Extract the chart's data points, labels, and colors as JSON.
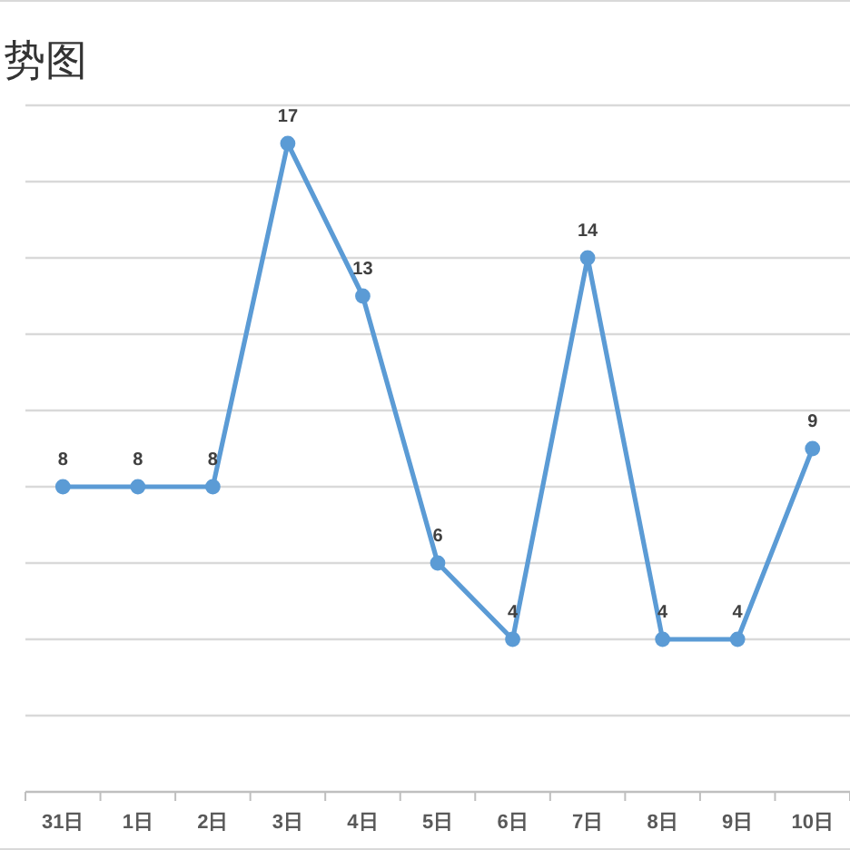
{
  "chart_data": {
    "type": "line",
    "title": "势图",
    "categories": [
      "31日",
      "1日",
      "2日",
      "3日",
      "4日",
      "5日",
      "6日",
      "7日",
      "8日",
      "9日",
      "10日"
    ],
    "values": [
      8,
      8,
      8,
      17,
      13,
      6,
      4,
      14,
      4,
      4,
      9
    ],
    "color": "#5b9bd5",
    "marker": "circle",
    "line_style": "solid",
    "data_labels": true,
    "grid": "y",
    "ylim": [
      0,
      18
    ],
    "yticks": [
      {
        "value": 0,
        "label": null
      },
      {
        "value": 2,
        "label": null
      },
      {
        "value": 4,
        "label": null
      },
      {
        "value": 6,
        "label": null
      },
      {
        "value": 8,
        "label": null
      },
      {
        "value": 10,
        "label": null
      },
      {
        "value": 12,
        "label": null
      },
      {
        "value": 14,
        "label": null
      },
      {
        "value": 16,
        "label": null
      },
      {
        "value": 18,
        "label": null
      }
    ]
  }
}
